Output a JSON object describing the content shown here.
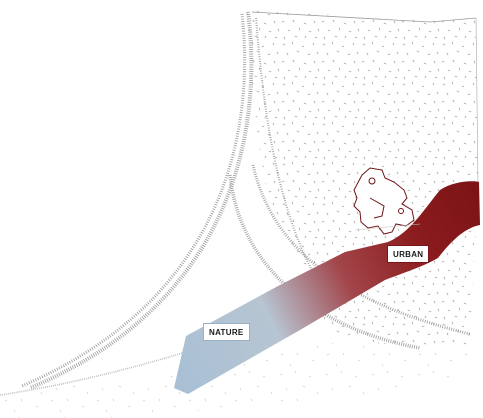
{
  "labels": {
    "urban": "URBAN",
    "nature": "NATURE"
  },
  "colors": {
    "urban": "#8c1c1e",
    "nature": "#a9c0d4",
    "speckle": "#8a8a8a",
    "rail": "#9a9a9a",
    "background": "#ffffff"
  },
  "icons": {
    "robot": "robot-figure-outline-icon"
  }
}
